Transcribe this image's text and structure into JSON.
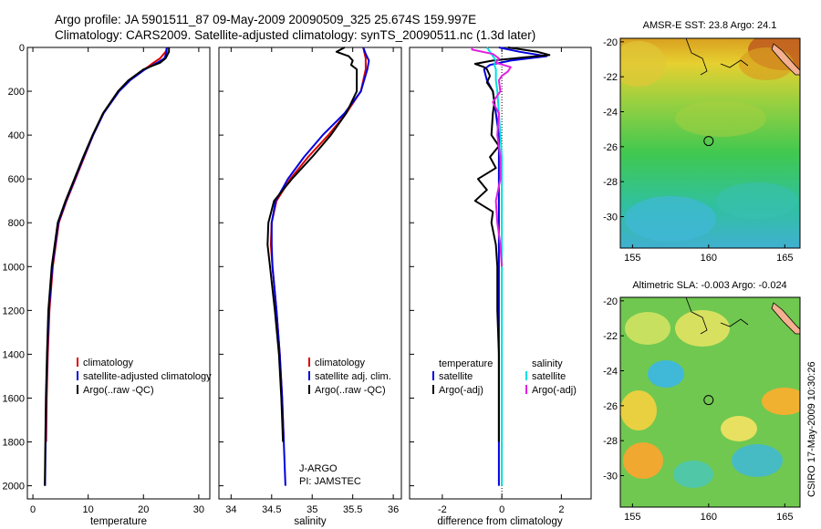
{
  "header": {
    "line1": "Argo profile: JA 5901511_87 09-May-2009 20090509_325 25.674S 159.997E",
    "line2": "Climatology: CARS2009. Satellite-adjusted climatology: synTS_20090511.nc (1.3d later)"
  },
  "colors": {
    "climatology": "#dd0000",
    "satellite": "#0000dd",
    "argo": "#000000",
    "salinity_satellite": "#00e0e0",
    "salinity_argo": "#e020e0"
  },
  "chart_data": [
    {
      "type": "line",
      "xlabel": "temperature",
      "ylabel": "",
      "xlim": [
        -1,
        32
      ],
      "ylim": [
        2060,
        0
      ],
      "xticks": [
        0,
        10,
        20,
        30
      ],
      "yticks": [
        0,
        200,
        400,
        600,
        800,
        1000,
        1200,
        1400,
        1600,
        1800,
        2000
      ],
      "legend": {
        "placement": "lower-right",
        "items": [
          {
            "label": "climatology",
            "color": "#dd0000"
          },
          {
            "label": "satellite-adjusted climatology",
            "color": "#0000dd"
          },
          {
            "label": "Argo(..raw -QC)",
            "color": "#000000"
          }
        ]
      },
      "series": [
        {
          "color": "#dd0000",
          "depth": [
            0,
            20,
            50,
            70,
            100,
            150,
            200,
            300,
            400,
            500,
            600,
            700,
            800,
            1000,
            1200,
            1400,
            1600,
            1800
          ],
          "x": [
            24.3,
            24.0,
            23.0,
            21.8,
            20.2,
            17.5,
            15.5,
            12.8,
            10.9,
            9.3,
            7.7,
            6.1,
            4.7,
            3.6,
            3.0,
            2.7,
            2.5,
            2.4
          ]
        },
        {
          "color": "#0000dd",
          "depth": [
            0,
            20,
            50,
            70,
            100,
            150,
            200,
            300,
            400,
            500,
            600,
            700,
            800,
            1000,
            1200,
            1400,
            1600,
            1800,
            2000
          ],
          "x": [
            24.2,
            24.2,
            23.8,
            22.5,
            20.3,
            17.6,
            15.6,
            12.8,
            10.9,
            9.2,
            7.6,
            6.0,
            4.6,
            3.5,
            2.9,
            2.6,
            2.4,
            2.3,
            2.2
          ]
        },
        {
          "color": "#000000",
          "depth": [
            0,
            20,
            50,
            70,
            100,
            150,
            200,
            300,
            400,
            500,
            600,
            700,
            800,
            1000,
            1200,
            1400,
            1600,
            1800,
            2000
          ],
          "x": [
            24.6,
            24.6,
            24.0,
            23.0,
            20.0,
            17.3,
            15.4,
            12.7,
            10.8,
            9.1,
            7.5,
            5.9,
            4.5,
            3.4,
            2.8,
            2.55,
            2.35,
            2.25,
            2.15
          ]
        }
      ]
    },
    {
      "type": "line",
      "xlabel": "salinity",
      "ylabel": "",
      "xlim": [
        33.85,
        36.1
      ],
      "ylim": [
        2060,
        0
      ],
      "xticks": [
        34,
        34.5,
        35,
        35.5,
        36
      ],
      "legend": {
        "placement": "lower-right",
        "items": [
          {
            "label": "climatology",
            "color": "#dd0000"
          },
          {
            "label": "satellite adj. clim.",
            "color": "#0000dd"
          },
          {
            "label": "Argo(..raw -QC)",
            "color": "#000000"
          }
        ]
      },
      "annotations": [
        "J-ARGO",
        "PI: JAMSTEC"
      ],
      "series": [
        {
          "color": "#dd0000",
          "depth": [
            0,
            50,
            100,
            200,
            300,
            400,
            500,
            600,
            700,
            800,
            900,
            1000,
            1200,
            1400,
            1600,
            1800
          ],
          "x": [
            35.63,
            35.66,
            35.66,
            35.6,
            35.42,
            35.2,
            34.95,
            34.73,
            34.56,
            34.5,
            34.49,
            34.51,
            34.56,
            34.6,
            34.63,
            34.65
          ]
        },
        {
          "color": "#0000dd",
          "depth": [
            0,
            30,
            60,
            100,
            200,
            300,
            400,
            500,
            600,
            700,
            800,
            900,
            1000,
            1200,
            1400,
            1600,
            1800,
            2000
          ],
          "x": [
            35.63,
            35.66,
            35.7,
            35.68,
            35.6,
            35.4,
            35.13,
            34.9,
            34.7,
            34.55,
            34.5,
            34.5,
            34.51,
            34.56,
            34.6,
            34.63,
            34.65,
            34.67
          ]
        },
        {
          "color": "#000000",
          "depth": [
            0,
            20,
            40,
            60,
            80,
            100,
            200,
            300,
            400,
            500,
            600,
            700,
            800,
            900,
            1000,
            1200,
            1400,
            1600,
            1800
          ],
          "x": [
            35.4,
            35.3,
            35.45,
            35.5,
            35.48,
            35.55,
            35.55,
            35.42,
            35.23,
            35.0,
            34.75,
            34.53,
            34.46,
            34.45,
            34.48,
            34.54,
            34.59,
            34.62,
            34.64
          ]
        }
      ]
    },
    {
      "type": "line",
      "xlabel": "difference from climatology",
      "ylabel": "",
      "xlim": [
        -3.1,
        3.0
      ],
      "ylim": [
        2060,
        0
      ],
      "xticks": [
        -2,
        0,
        2
      ],
      "legend": {
        "placement": "lower-right",
        "items": [
          {
            "label": "temperature",
            "color": "",
            "group": "temperature"
          },
          {
            "label": "satellite",
            "color": "#0000dd",
            "group": "temperature"
          },
          {
            "label": "Argo(-adj)",
            "color": "#000000",
            "group": "temperature"
          },
          {
            "label": "salinity",
            "color": "",
            "group": "salinity"
          },
          {
            "label": "satellite",
            "color": "#00e0e0",
            "group": "salinity"
          },
          {
            "label": "Argo(-adj)",
            "color": "#e020e0",
            "group": "salinity"
          }
        ]
      },
      "series": [
        {
          "color": "#0000dd",
          "depth": [
            0,
            20,
            40,
            60,
            80,
            100,
            150,
            200,
            300,
            400,
            500,
            600,
            700,
            800,
            1000,
            1200,
            1400,
            1600,
            1800,
            2000
          ],
          "x": [
            -0.1,
            0.6,
            1.5,
            0.3,
            -0.4,
            -0.6,
            -0.5,
            -0.3,
            -0.2,
            -0.1,
            -0.1,
            -0.1,
            -0.1,
            -0.1,
            -0.1,
            -0.1,
            -0.1,
            -0.1,
            -0.1,
            -0.1
          ]
        },
        {
          "color": "#000000",
          "depth": [
            0,
            20,
            35,
            45,
            60,
            75,
            90,
            100,
            130,
            160,
            200,
            250,
            300,
            400,
            450,
            500,
            550,
            600,
            650,
            700,
            750,
            800,
            900,
            1000,
            1200,
            1400,
            1600,
            1800
          ],
          "x": [
            0.2,
            1.2,
            1.6,
            0.8,
            -0.3,
            -0.9,
            -0.6,
            -0.5,
            -0.4,
            -0.5,
            -0.3,
            -0.25,
            -0.3,
            -0.35,
            -0.1,
            -0.4,
            -0.2,
            -0.8,
            -0.5,
            -0.9,
            -0.3,
            -0.35,
            -0.2,
            -0.15,
            -0.15,
            -0.1,
            -0.1,
            -0.1
          ]
        },
        {
          "color": "#00e0e0",
          "depth": [
            0,
            20,
            40,
            60,
            80,
            100,
            150,
            200,
            300,
            400,
            500,
            600,
            700,
            800,
            1000,
            1200,
            1400,
            1600,
            1800,
            2000
          ],
          "x": [
            -0.5,
            -0.4,
            -0.3,
            -0.2,
            -0.25,
            -0.2,
            -0.2,
            -0.15,
            -0.1,
            -0.05,
            0.0,
            0.0,
            0.0,
            0.0,
            0.0,
            0.0,
            0.0,
            0.0,
            0.0,
            0.0
          ]
        },
        {
          "color": "#e020e0",
          "depth": [
            0,
            10,
            30,
            50,
            70,
            90,
            110,
            130,
            150,
            200,
            250,
            300,
            400,
            500,
            600,
            700,
            800,
            900,
            1000
          ],
          "x": [
            -1.0,
            -1.0,
            -0.3,
            -0.1,
            -0.2,
            0.3,
            0.2,
            0.0,
            -0.1,
            -0.05,
            -0.3,
            -0.1,
            -0.15,
            -0.05,
            -0.05,
            -0.2,
            -0.15,
            -0.05,
            0.0
          ]
        }
      ]
    }
  ],
  "maps": [
    {
      "title": "AMSR-E SST: 23.8 Argo: 24.1",
      "xticks": [
        155,
        160,
        165
      ],
      "yticks": [
        -20,
        -22,
        -24,
        -26,
        -28,
        -30
      ],
      "xlim": [
        154.2,
        166.0
      ],
      "ylim": [
        -31.8,
        -19.8
      ],
      "marker": [
        159.997,
        -25.674
      ]
    },
    {
      "title": "Altimetric SLA: -0.003 Argo: -0.024",
      "xticks": [
        155,
        160,
        165
      ],
      "yticks": [
        -20,
        -22,
        -24,
        -26,
        -28,
        -30
      ],
      "xlim": [
        154.2,
        166.0
      ],
      "ylim": [
        -31.8,
        -19.8
      ],
      "marker": [
        159.997,
        -25.674
      ]
    }
  ],
  "footer": {
    "side_text": "CSIRO 17-May-2009 10:30:26"
  }
}
